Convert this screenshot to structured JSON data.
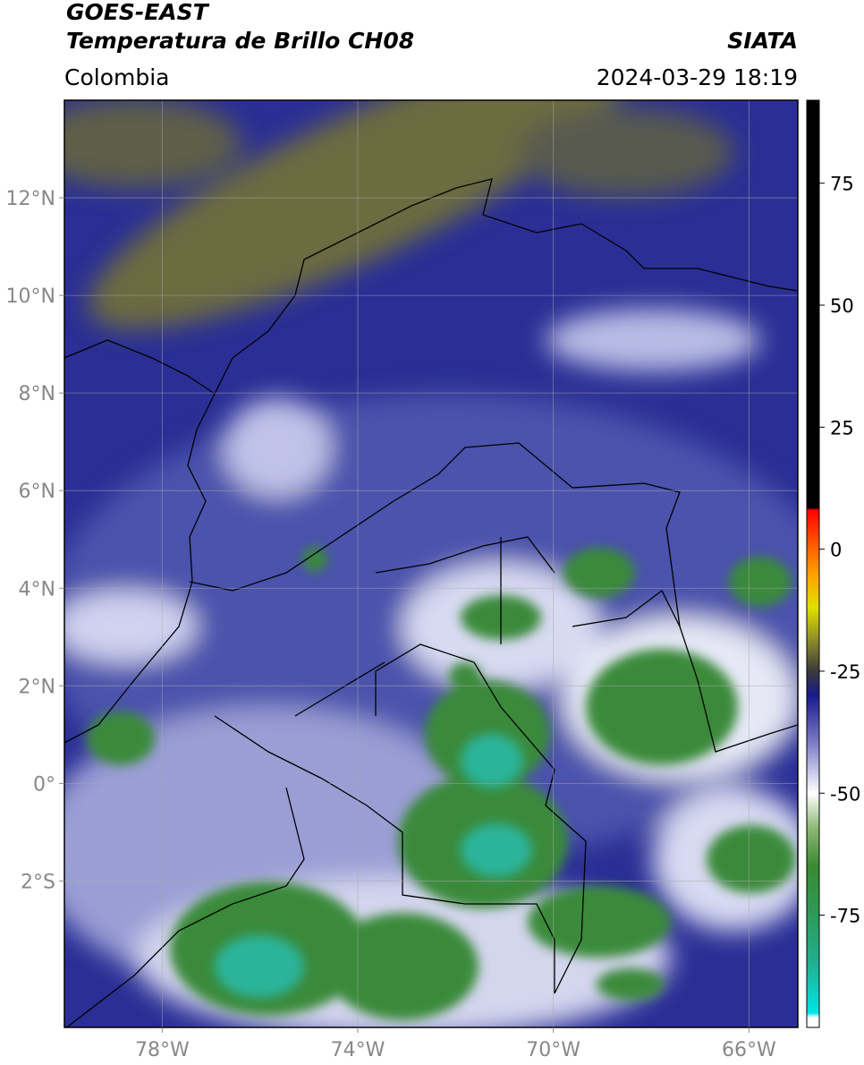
{
  "header": {
    "title": "GOES-EAST",
    "subtitle": "Temperatura de Brillo CH08",
    "source": "SIATA",
    "region": "Colombia",
    "timestamp": "2024-03-29 18:19"
  },
  "map": {
    "lon_range": [
      -80,
      -65
    ],
    "lat_range": [
      -5,
      14
    ],
    "lon_ticks": [
      {
        "value": -78,
        "label": "78°W"
      },
      {
        "value": -74,
        "label": "74°W"
      },
      {
        "value": -70,
        "label": "70°W"
      },
      {
        "value": -66,
        "label": "66°W"
      }
    ],
    "lat_ticks": [
      {
        "value": 12,
        "label": "12°N"
      },
      {
        "value": 10,
        "label": "10°N"
      },
      {
        "value": 8,
        "label": "8°N"
      },
      {
        "value": 6,
        "label": "6°N"
      },
      {
        "value": 4,
        "label": "4°N"
      },
      {
        "value": 2,
        "label": "2°N"
      },
      {
        "value": 0,
        "label": "0°"
      },
      {
        "value": -2,
        "label": "2°S"
      }
    ]
  },
  "colorbar": {
    "range": [
      -98,
      92
    ],
    "ticks": [
      75,
      50,
      25,
      0,
      -25,
      -50,
      -75
    ],
    "stops": [
      {
        "value": -98,
        "color": "#ffffff"
      },
      {
        "value": -96,
        "color": "#ffffff"
      },
      {
        "value": -95,
        "color": "#00e5e5"
      },
      {
        "value": -85,
        "color": "#20b090"
      },
      {
        "value": -75,
        "color": "#2f9a5a"
      },
      {
        "value": -65,
        "color": "#3a8a30"
      },
      {
        "value": -57,
        "color": "#8fb878"
      },
      {
        "value": -50,
        "color": "#ffffff"
      },
      {
        "value": -40,
        "color": "#8080c8"
      },
      {
        "value": -30,
        "color": "#1a1a8a"
      },
      {
        "value": -25,
        "color": "#3a3a3a"
      },
      {
        "value": -20,
        "color": "#7a7a30"
      },
      {
        "value": -12,
        "color": "#e0e000"
      },
      {
        "value": -5,
        "color": "#ffa000"
      },
      {
        "value": 3,
        "color": "#ff4000"
      },
      {
        "value": 8,
        "color": "#ff0000"
      },
      {
        "value": 8.5,
        "color": "#000000"
      },
      {
        "value": 92,
        "color": "#000000"
      }
    ]
  }
}
